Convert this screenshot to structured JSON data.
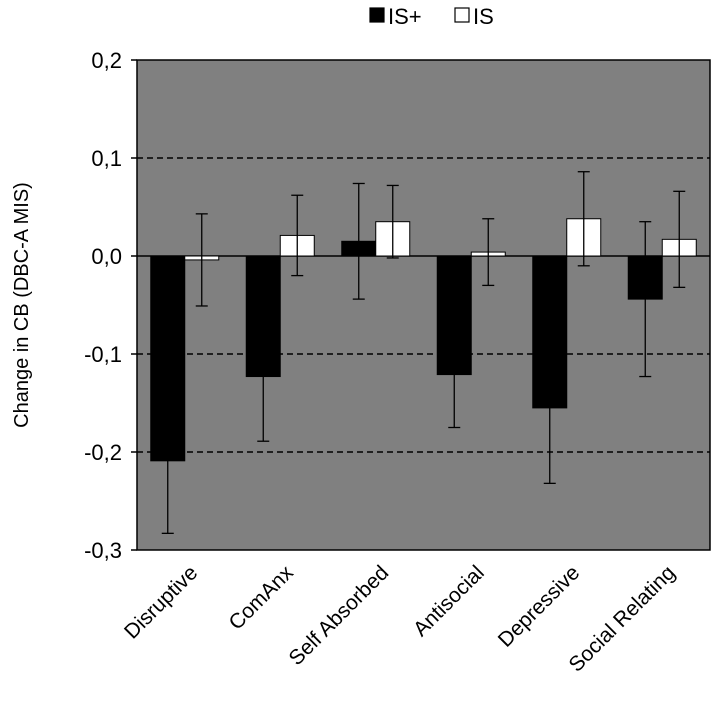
{
  "chart_data": {
    "type": "bar",
    "title": "",
    "xlabel": "",
    "ylabel": "Change in CB (DBC-A MIS)",
    "ylim": [
      -0.3,
      0.2
    ],
    "yticks": [
      0.2,
      0.1,
      0.0,
      -0.1,
      -0.2,
      -0.3
    ],
    "ytick_labels": [
      "0,2",
      "0,1",
      "0,0",
      "-0,1",
      "-0,2",
      "-0,3"
    ],
    "gridlines_dashed_at": [
      0.1,
      -0.1,
      -0.2
    ],
    "legend_position": "top",
    "categories": [
      "Disruptive",
      "ComAnx",
      "Self Absorbed",
      "Antisocial",
      "Depressive",
      "Social Relating"
    ],
    "series": [
      {
        "name": "IS+",
        "color": "#000000",
        "values": [
          -0.209,
          -0.123,
          0.015,
          -0.121,
          -0.155,
          -0.044
        ],
        "error": [
          0.074,
          0.066,
          0.059,
          0.054,
          0.077,
          0.079
        ]
      },
      {
        "name": "IS",
        "color": "#ffffff",
        "values": [
          -0.004,
          0.021,
          0.035,
          0.004,
          0.038,
          0.017
        ],
        "error": [
          0.047,
          0.041,
          0.037,
          0.034,
          0.048,
          0.049
        ]
      }
    ],
    "colors": {
      "plot_background": "#808080",
      "frame": "#000000"
    }
  }
}
